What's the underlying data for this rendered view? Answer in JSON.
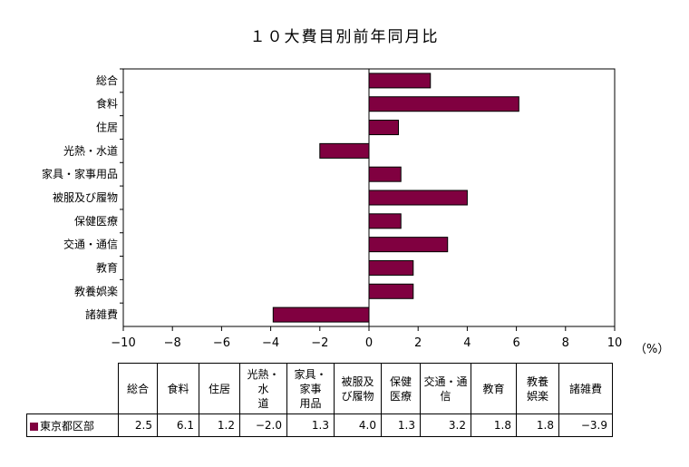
{
  "title": "１０大費目別前年同月比",
  "unit_label": "（%）",
  "chart_data": {
    "type": "bar",
    "orientation": "horizontal",
    "title": "１０大費目別前年同月比",
    "categories": [
      "総合",
      "食料",
      "住居",
      "光熱・水道",
      "家具・家事用品",
      "被服及び履物",
      "保健医療",
      "交通・通信",
      "教育",
      "教養娯楽",
      "諸雑費"
    ],
    "series": [
      {
        "name": "東京都区部",
        "values": [
          2.5,
          6.1,
          1.2,
          -2.0,
          1.3,
          4.0,
          1.3,
          3.2,
          1.8,
          1.8,
          -3.9
        ]
      }
    ],
    "xlim": [
      -10,
      10
    ],
    "xticks": [
      -10,
      -8,
      -6,
      -4,
      -2,
      0,
      2,
      4,
      6,
      8,
      10
    ],
    "xtick_labels": [
      "−10",
      "−8",
      "−6",
      "−4",
      "−2",
      "0",
      "2",
      "4",
      "6",
      "8",
      "10"
    ],
    "bar_color": "#800040",
    "grid": false
  },
  "table": {
    "headers": [
      "総合",
      "食料",
      "住居",
      "光熱・水\n道",
      "家具・\n家事\n用品",
      "被服及\nび履物",
      "保健\n医療",
      "交通・通\n信",
      "教育",
      "教養\n娯楽",
      "諸雑費"
    ],
    "row_label": "東京都区部",
    "values": [
      "2.5",
      "6.1",
      "1.2",
      "−2.0",
      "1.3",
      "4.0",
      "1.3",
      "3.2",
      "1.8",
      "1.8",
      "−3.9"
    ]
  }
}
